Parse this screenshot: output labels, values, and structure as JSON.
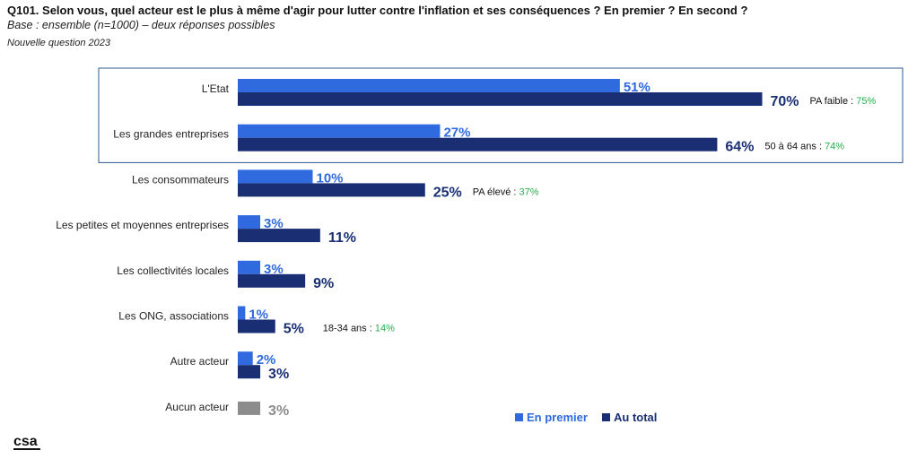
{
  "header": {
    "title": "Q101. Selon vous, quel acteur est le plus à même d'agir pour lutter contre l'inflation et ses conséquences ? En premier ? En second ?",
    "subtitle": "Base : ensemble (n=1000) – deux réponses possibles",
    "note": "Nouvelle question 2023"
  },
  "colors": {
    "first": "#2f6bde",
    "total": "#1a2f73",
    "none": "#8c8c8c",
    "highlight_green": "#22b04a",
    "box": "#2f5a8c"
  },
  "chart_data": {
    "type": "bar",
    "orientation": "horizontal",
    "categories": [
      "L'Etat",
      "Les grandes entreprises",
      "Les consommateurs",
      "Les petites et moyennes entreprises",
      "Les collectivités locales",
      "Les ONG, associations",
      "Autre acteur",
      "Aucun acteur"
    ],
    "series": [
      {
        "name": "En premier",
        "values": [
          51,
          27,
          10,
          3,
          3,
          1,
          2,
          null
        ]
      },
      {
        "name": "Au total",
        "values": [
          70,
          64,
          25,
          11,
          9,
          5,
          3,
          3
        ]
      }
    ],
    "value_suffix": "%",
    "annotations": [
      {
        "category": "L'Etat",
        "label": "PA faible :",
        "value": "75%"
      },
      {
        "category": "Les grandes entreprises",
        "label": "50 à 64 ans :",
        "value": "74%"
      },
      {
        "category": "Les consommateurs",
        "label": "PA élevé :",
        "value": "37%"
      },
      {
        "category": "Les ONG, associations",
        "label": "18-34 ans :",
        "value": "14%"
      }
    ],
    "highlighted_categories": [
      "L'Etat",
      "Les grandes entreprises"
    ],
    "legend": {
      "position": "bottom-right",
      "entries": [
        "En premier",
        "Au total"
      ]
    },
    "xlim": [
      0,
      100
    ],
    "grid": false
  },
  "logo": {
    "text": "csa"
  }
}
